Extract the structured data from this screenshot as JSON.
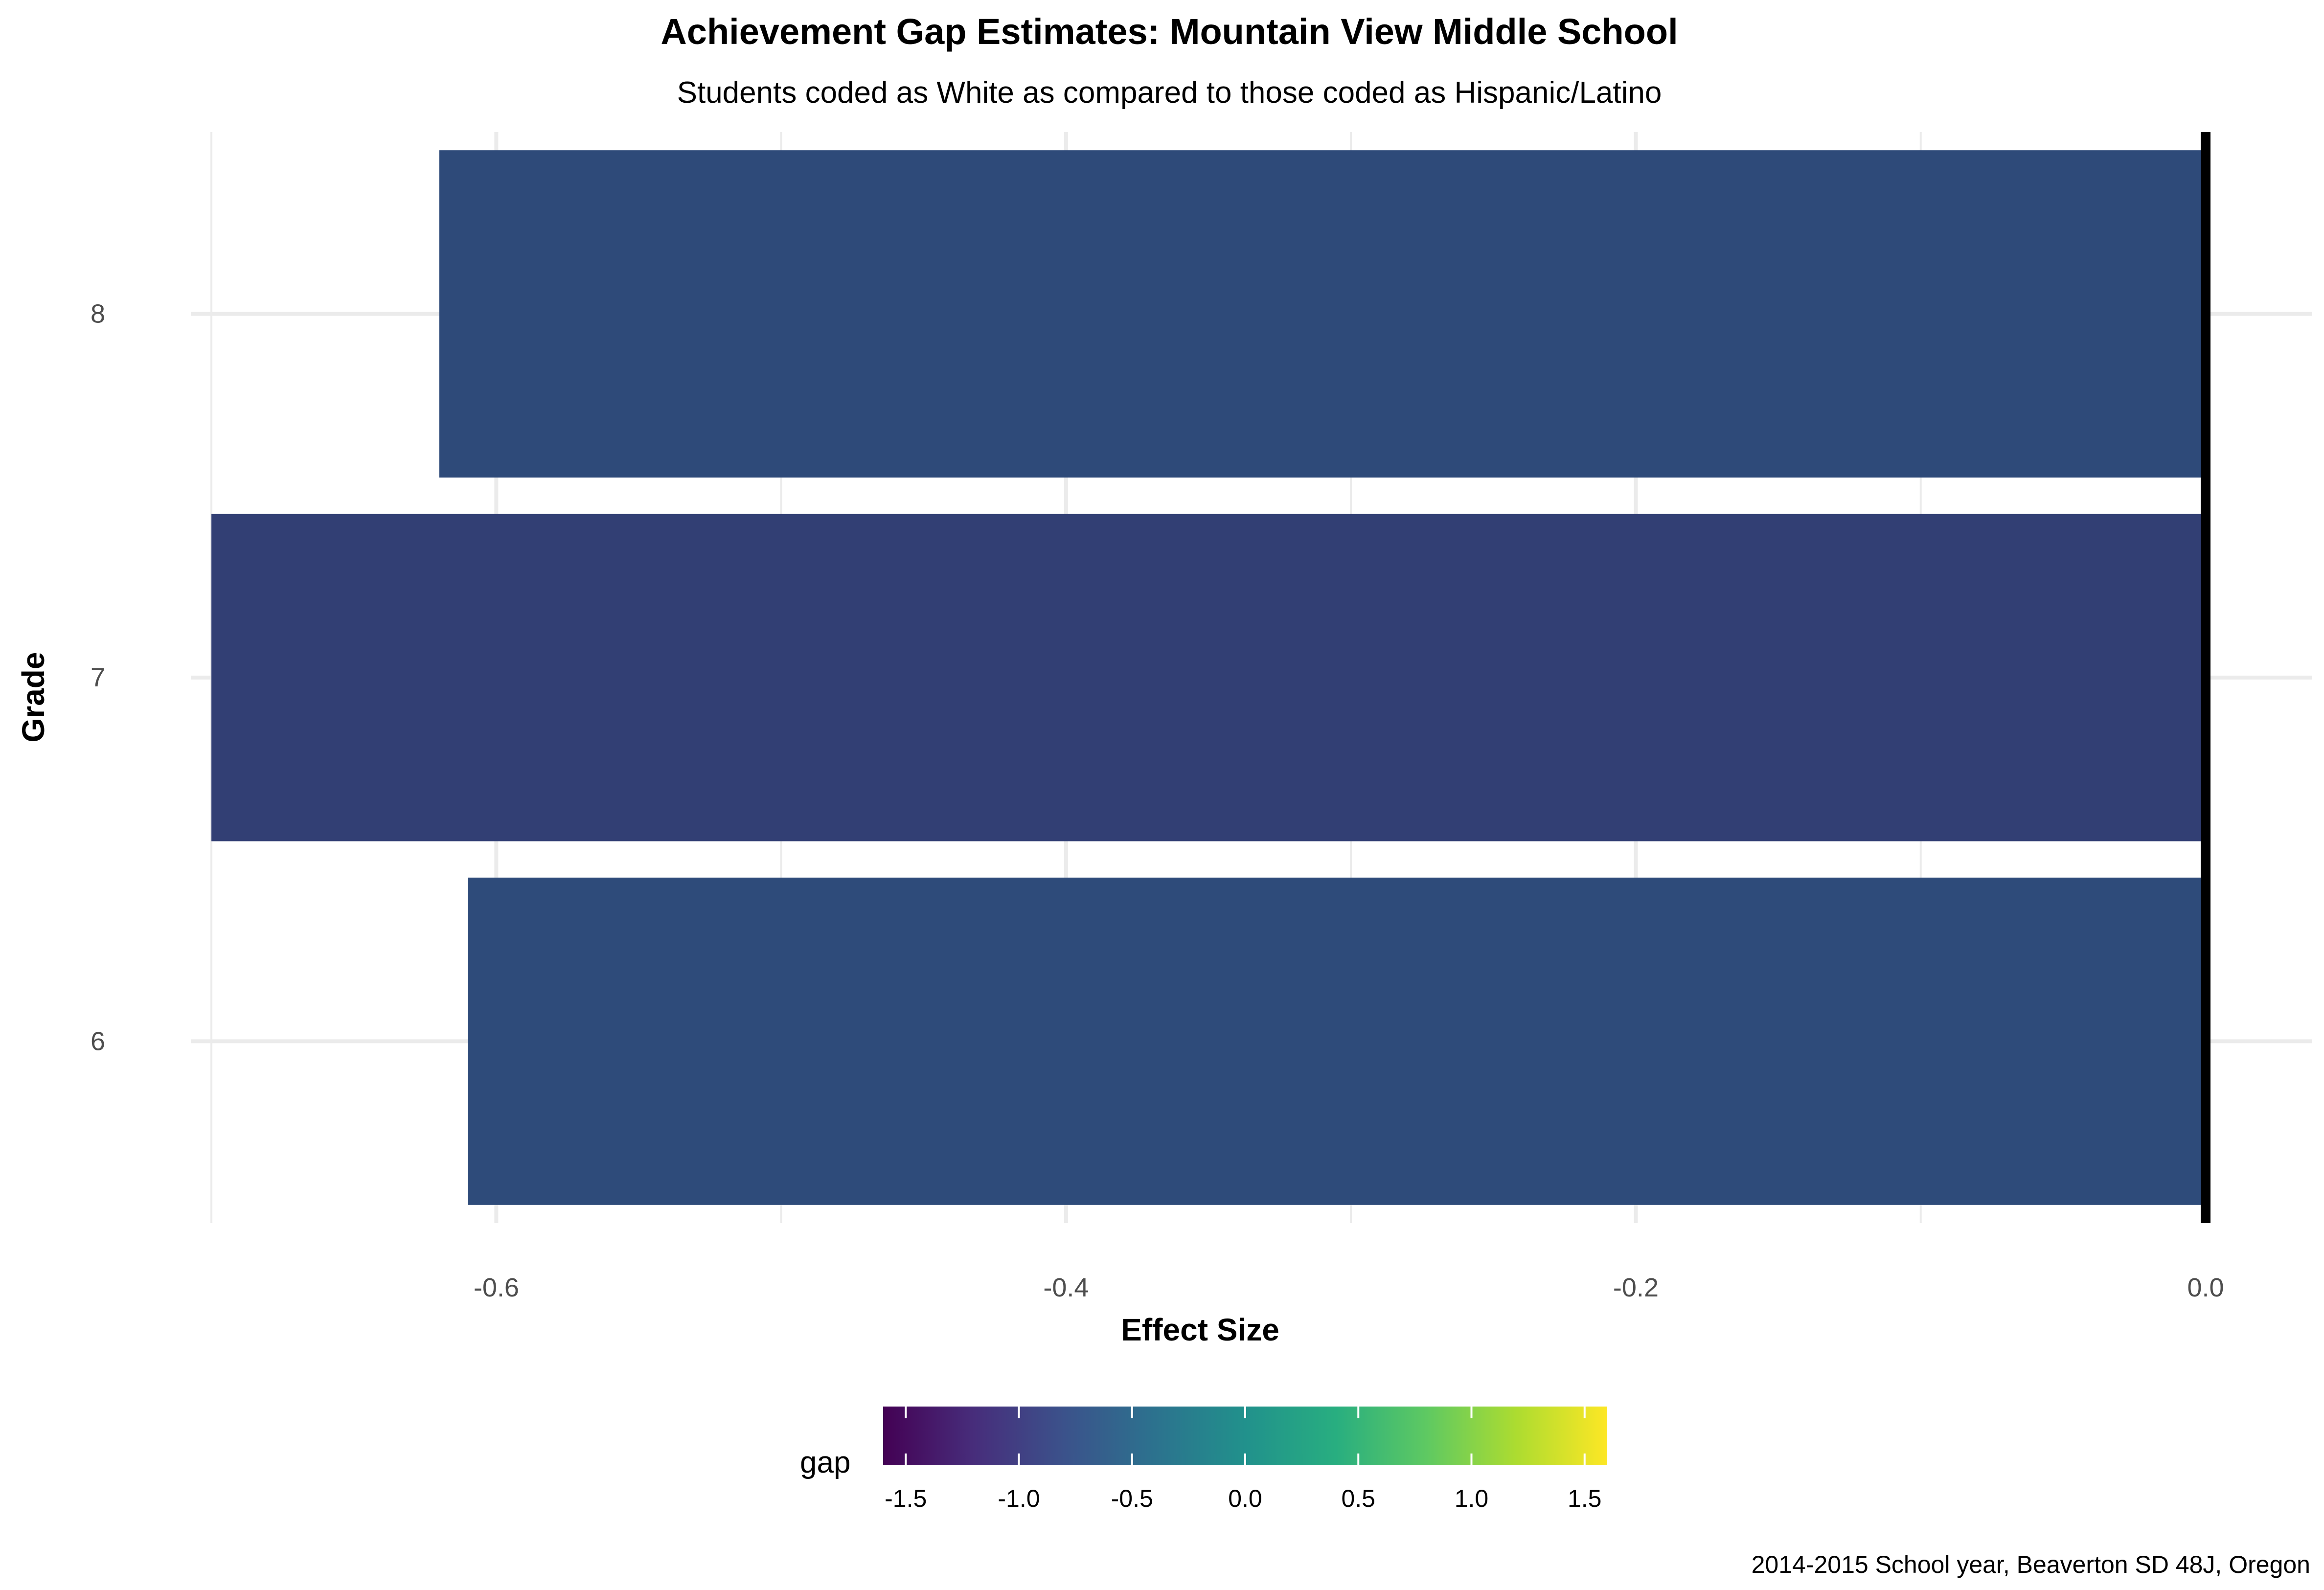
{
  "chart_data": {
    "type": "bar",
    "orientation": "horizontal",
    "title": "Achievement Gap Estimates: Mountain View Middle School",
    "subtitle": "Students coded as White as compared to those coded as Hispanic/Latino",
    "xlabel": "Effect Size",
    "ylabel": "Grade",
    "categories": [
      "6",
      "7",
      "8"
    ],
    "values": [
      -0.61,
      -0.7,
      -0.62
    ],
    "xlim": [
      -0.705,
      0.0
    ],
    "xticks": [
      -0.6,
      -0.4,
      -0.2,
      0.0
    ],
    "xtick_labels": [
      "-0.6",
      "-0.4",
      "-0.2",
      "0.0"
    ],
    "reference_line": 0.0,
    "grid": true,
    "colors": {
      "bar_6": "#2e4b7a",
      "bar_7": "#323f74",
      "bar_8": "#2e4a79",
      "reference_line": "#000000",
      "grid": "#ebebeb"
    },
    "legend": {
      "title": "gap",
      "position": "bottom",
      "type": "colorbar",
      "palette": "viridis",
      "range": [
        -1.6,
        1.6
      ],
      "ticks": [
        -1.5,
        -1.0,
        -0.5,
        0.0,
        0.5,
        1.0,
        1.5
      ],
      "tick_labels": [
        "-1.5",
        "-1.0",
        "-0.5",
        "0.0",
        "0.5",
        "1.0",
        "1.5"
      ]
    },
    "caption": "2014-2015 School year, Beaverton SD 48J, Oregon"
  }
}
